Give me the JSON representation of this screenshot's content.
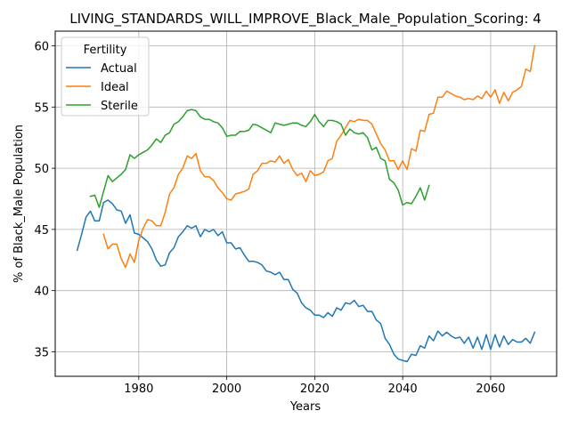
{
  "chart_data": {
    "type": "line",
    "title": "LIVING_STANDARDS_WILL_IMPROVE_Black_Male_Population_Scoring: 4",
    "xlabel": "Years",
    "ylabel": "% of Black_Male Population",
    "xlim": [
      1961,
      2075
    ],
    "ylim": [
      33,
      61.2
    ],
    "xticks": [
      1980,
      2000,
      2020,
      2040,
      2060
    ],
    "yticks": [
      35,
      40,
      45,
      50,
      55,
      60
    ],
    "grid": true,
    "legend": {
      "title": "Fertility",
      "placement": "top-left"
    },
    "series": [
      {
        "name": "Actual",
        "color": "#1f77b4",
        "x": [
          1966,
          1967,
          1968,
          1969,
          1970,
          1971,
          1972,
          1973,
          1974,
          1975,
          1976,
          1977,
          1978,
          1979,
          1980,
          1981,
          1982,
          1983,
          1984,
          1985,
          1986,
          1987,
          1988,
          1989,
          1990,
          1991,
          1992,
          1993,
          1994,
          1995,
          1996,
          1997,
          1998,
          1999,
          2000,
          2001,
          2002,
          2003,
          2004,
          2005,
          2006,
          2007,
          2008,
          2009,
          2010,
          2011,
          2012,
          2013,
          2014,
          2015,
          2016,
          2017,
          2018,
          2019,
          2020,
          2021,
          2022,
          2023,
          2024,
          2025,
          2026,
          2027,
          2028,
          2029,
          2030,
          2031,
          2032,
          2033,
          2034,
          2035,
          2036,
          2037,
          2038,
          2039,
          2040,
          2041,
          2042,
          2043,
          2044,
          2045,
          2046,
          2047,
          2048,
          2049,
          2050,
          2051,
          2052,
          2053,
          2054,
          2055,
          2056,
          2057,
          2058,
          2059,
          2060,
          2061,
          2062,
          2063,
          2064,
          2065,
          2066,
          2067,
          2068,
          2069,
          2070
        ],
        "values": [
          43.3,
          44.6,
          46.0,
          46.5,
          45.7,
          45.7,
          47.2,
          47.4,
          47.1,
          46.6,
          46.5,
          45.5,
          46.2,
          44.7,
          44.6,
          44.3,
          44.0,
          43.4,
          42.5,
          42.0,
          42.1,
          43.1,
          43.5,
          44.4,
          44.8,
          45.3,
          45.1,
          45.3,
          44.4,
          45.0,
          44.8,
          45.0,
          44.5,
          44.8,
          43.9,
          43.9,
          43.4,
          43.5,
          42.9,
          42.4,
          42.4,
          42.3,
          42.1,
          41.6,
          41.5,
          41.3,
          41.5,
          40.9,
          40.9,
          40.1,
          39.8,
          39.0,
          38.6,
          38.4,
          38.0,
          38.0,
          37.8,
          38.2,
          37.9,
          38.6,
          38.4,
          39.0,
          38.9,
          39.2,
          38.7,
          38.8,
          38.3,
          38.3,
          37.6,
          37.3,
          36.1,
          35.6,
          34.8,
          34.4,
          34.3,
          34.2,
          34.8,
          34.7,
          35.5,
          35.3,
          36.3,
          35.9,
          36.7,
          36.3,
          36.6,
          36.3,
          36.1,
          36.2,
          35.7,
          36.2,
          35.3,
          36.2,
          35.2,
          36.4,
          35.2,
          36.4,
          35.4,
          36.3,
          35.6,
          36.0,
          35.8,
          35.8,
          36.1,
          35.7,
          36.6
        ]
      },
      {
        "name": "Ideal",
        "color": "#ff7f0e",
        "x": [
          1972,
          1973,
          1974,
          1975,
          1976,
          1977,
          1978,
          1979,
          1980,
          1981,
          1982,
          1983,
          1984,
          1985,
          1986,
          1987,
          1988,
          1989,
          1990,
          1991,
          1992,
          1993,
          1994,
          1995,
          1996,
          1997,
          1998,
          1999,
          2000,
          2001,
          2002,
          2003,
          2004,
          2005,
          2006,
          2007,
          2008,
          2009,
          2010,
          2011,
          2012,
          2013,
          2014,
          2015,
          2016,
          2017,
          2018,
          2019,
          2020,
          2021,
          2022,
          2023,
          2024,
          2025,
          2026,
          2027,
          2028,
          2029,
          2030,
          2031,
          2032,
          2033,
          2034,
          2035,
          2036,
          2037,
          2038,
          2039,
          2040,
          2041,
          2042,
          2043,
          2044,
          2045,
          2046,
          2047,
          2048,
          2049,
          2050,
          2051,
          2052,
          2053,
          2054,
          2055,
          2056,
          2057,
          2058,
          2059,
          2060,
          2061,
          2062,
          2063,
          2064,
          2065,
          2066,
          2067,
          2068,
          2069,
          2070
        ],
        "values": [
          44.6,
          43.4,
          43.8,
          43.8,
          42.6,
          41.9,
          43.0,
          42.3,
          44.1,
          45.1,
          45.8,
          45.7,
          45.3,
          45.3,
          46.4,
          47.9,
          48.4,
          49.5,
          50.0,
          51.0,
          50.8,
          51.2,
          49.8,
          49.3,
          49.3,
          49.0,
          48.4,
          48.0,
          47.5,
          47.4,
          47.9,
          48.0,
          48.1,
          48.3,
          49.5,
          49.8,
          50.4,
          50.4,
          50.6,
          50.5,
          51.0,
          50.4,
          50.7,
          49.9,
          49.4,
          49.6,
          48.9,
          49.8,
          49.4,
          49.5,
          49.7,
          50.6,
          50.8,
          52.2,
          52.7,
          53.3,
          53.9,
          53.8,
          54.0,
          53.9,
          53.9,
          53.6,
          52.8,
          52.0,
          51.5,
          50.6,
          50.6,
          49.9,
          50.6,
          49.9,
          51.6,
          51.4,
          53.1,
          53.0,
          54.4,
          54.5,
          55.8,
          55.8,
          56.3,
          56.1,
          55.9,
          55.8,
          55.6,
          55.7,
          55.6,
          55.9,
          55.7,
          56.3,
          55.8,
          56.4,
          55.3,
          56.2,
          55.5,
          56.2,
          56.4,
          56.7,
          58.1,
          57.9,
          60.0
        ]
      },
      {
        "name": "Sterile",
        "color": "#2ca02c",
        "x": [
          1969,
          1970,
          1971,
          1972,
          1973,
          1974,
          1975,
          1976,
          1977,
          1978,
          1979,
          1980,
          1981,
          1982,
          1983,
          1984,
          1985,
          1986,
          1987,
          1988,
          1989,
          1990,
          1991,
          1992,
          1993,
          1994,
          1995,
          1996,
          1997,
          1998,
          1999,
          2000,
          2001,
          2002,
          2003,
          2004,
          2005,
          2006,
          2007,
          2008,
          2009,
          2010,
          2011,
          2012,
          2013,
          2014,
          2015,
          2016,
          2017,
          2018,
          2019,
          2020,
          2021,
          2022,
          2023,
          2024,
          2025,
          2026,
          2027,
          2028,
          2029,
          2030,
          2031,
          2032,
          2033,
          2034,
          2035,
          2036,
          2037,
          2038,
          2039,
          2040,
          2041,
          2042,
          2043,
          2044,
          2045,
          2046
        ],
        "values": [
          47.7,
          47.8,
          46.8,
          48.1,
          49.4,
          48.9,
          49.2,
          49.5,
          49.9,
          51.1,
          50.8,
          51.1,
          51.3,
          51.5,
          51.9,
          52.4,
          52.1,
          52.7,
          52.9,
          53.6,
          53.8,
          54.2,
          54.7,
          54.8,
          54.7,
          54.2,
          54.0,
          54.0,
          53.8,
          53.7,
          53.3,
          52.6,
          52.7,
          52.7,
          53.0,
          53.0,
          53.1,
          53.6,
          53.5,
          53.3,
          53.1,
          52.9,
          53.7,
          53.6,
          53.5,
          53.6,
          53.7,
          53.7,
          53.5,
          53.4,
          53.8,
          54.4,
          53.8,
          53.4,
          53.9,
          53.9,
          53.8,
          53.6,
          52.7,
          53.2,
          52.9,
          52.8,
          52.9,
          52.5,
          51.5,
          51.7,
          50.8,
          50.6,
          49.1,
          48.8,
          48.2,
          47.0,
          47.2,
          47.1,
          47.7,
          48.4,
          47.4,
          48.6
        ]
      }
    ]
  }
}
